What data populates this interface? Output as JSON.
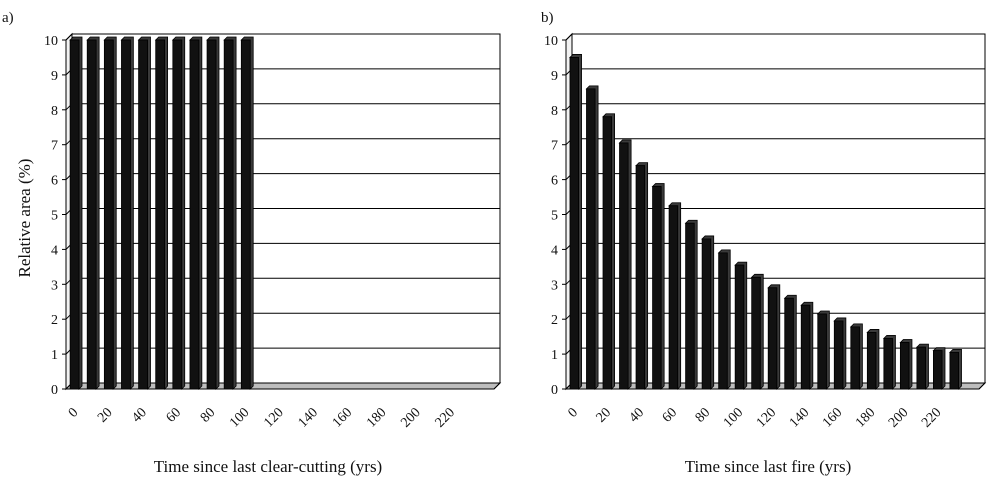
{
  "figure": {
    "ylabel": "Relative area (%)"
  },
  "chart_data": [
    {
      "type": "bar",
      "panel_label": "a)",
      "xlabel": "Time since last clear-cutting (yrs)",
      "ylabel": "Relative area (%)",
      "ylim": [
        0,
        10
      ],
      "yticks": [
        "0",
        "1",
        "2",
        "3",
        "4",
        "5",
        "6",
        "7",
        "8",
        "9",
        "10"
      ],
      "xtick_labels": [
        "0",
        "20",
        "40",
        "60",
        "80",
        "100",
        "120",
        "140",
        "160",
        "180",
        "200",
        "220"
      ],
      "categories": [
        0,
        10,
        20,
        30,
        40,
        50,
        60,
        70,
        80,
        90,
        100,
        110,
        120,
        130,
        140,
        150,
        160,
        170,
        180,
        190,
        200,
        210,
        220,
        230,
        240
      ],
      "values": [
        10,
        10,
        10,
        10,
        10,
        10,
        10,
        10,
        10,
        10,
        10,
        0,
        0,
        0,
        0,
        0,
        0,
        0,
        0,
        0,
        0,
        0,
        0,
        0,
        0
      ],
      "grid": true,
      "legend": "none"
    },
    {
      "type": "bar",
      "panel_label": "b)",
      "xlabel": "Time since last fire (yrs)",
      "ylabel": "",
      "ylim": [
        0,
        10
      ],
      "yticks": [
        "0",
        "1",
        "2",
        "3",
        "4",
        "5",
        "6",
        "7",
        "8",
        "9",
        "10"
      ],
      "xtick_labels": [
        "0",
        "20",
        "40",
        "60",
        "80",
        "100",
        "120",
        "140",
        "160",
        "180",
        "200",
        "220"
      ],
      "categories": [
        0,
        10,
        20,
        30,
        40,
        50,
        60,
        70,
        80,
        90,
        100,
        110,
        120,
        130,
        140,
        150,
        160,
        170,
        180,
        190,
        200,
        210,
        220,
        230,
        240
      ],
      "values": [
        9.5,
        8.6,
        7.8,
        7.05,
        6.4,
        5.8,
        5.25,
        4.75,
        4.3,
        3.9,
        3.55,
        3.2,
        2.9,
        2.6,
        2.4,
        2.15,
        1.95,
        1.78,
        1.62,
        1.45,
        1.33,
        1.2,
        1.1,
        1.05,
        0
      ],
      "grid": true,
      "legend": "none"
    }
  ]
}
